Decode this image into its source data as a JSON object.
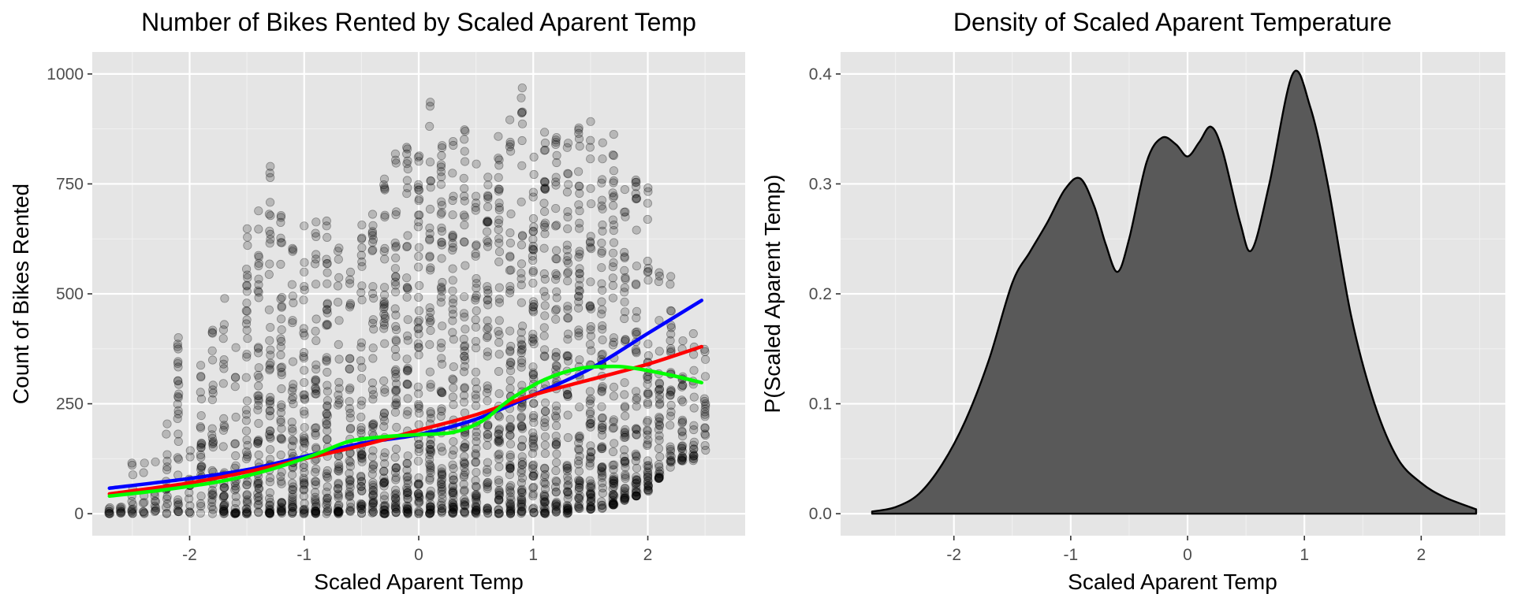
{
  "chart_data": [
    {
      "type": "scatter",
      "title": "Number of Bikes Rented by Scaled Aparent Temp",
      "xlabel": "Scaled Aparent Temp",
      "ylabel": "Count of Bikes Rented",
      "xlim": [
        -2.85,
        2.85
      ],
      "ylim": [
        -50,
        1050
      ],
      "x_ticks": [
        -2,
        -1,
        0,
        1,
        2
      ],
      "x_tick_labels": [
        "-2",
        "-1",
        "0",
        "1",
        "2"
      ],
      "y_ticks": [
        0,
        250,
        500,
        750,
        1000
      ],
      "y_tick_labels": [
        "0",
        "250",
        "500",
        "750",
        "1000"
      ],
      "grid": true,
      "background": "#e5e5e5",
      "point_color": "#000000",
      "point_alpha": 0.2,
      "scatter_columns": [
        {
          "x": -2.7,
          "ymin": 0,
          "ymax": 20
        },
        {
          "x": -2.6,
          "ymin": 0,
          "ymax": 40
        },
        {
          "x": -2.5,
          "ymin": 0,
          "ymax": 180
        },
        {
          "x": -2.4,
          "ymin": 0,
          "ymax": 120
        },
        {
          "x": -2.3,
          "ymin": 0,
          "ymax": 140
        },
        {
          "x": -2.2,
          "ymin": 0,
          "ymax": 240
        },
        {
          "x": -2.1,
          "ymin": 0,
          "ymax": 420
        },
        {
          "x": -2.0,
          "ymin": 0,
          "ymax": 200
        },
        {
          "x": -1.9,
          "ymin": 0,
          "ymax": 360
        },
        {
          "x": -1.8,
          "ymin": 0,
          "ymax": 420
        },
        {
          "x": -1.7,
          "ymin": 0,
          "ymax": 500
        },
        {
          "x": -1.6,
          "ymin": 0,
          "ymax": 390
        },
        {
          "x": -1.5,
          "ymin": 0,
          "ymax": 660
        },
        {
          "x": -1.4,
          "ymin": 0,
          "ymax": 690
        },
        {
          "x": -1.3,
          "ymin": 0,
          "ymax": 790
        },
        {
          "x": -1.2,
          "ymin": 0,
          "ymax": 690
        },
        {
          "x": -1.1,
          "ymin": 0,
          "ymax": 640
        },
        {
          "x": -1.0,
          "ymin": 0,
          "ymax": 660
        },
        {
          "x": -0.9,
          "ymin": 0,
          "ymax": 700
        },
        {
          "x": -0.8,
          "ymin": 0,
          "ymax": 710
        },
        {
          "x": -0.7,
          "ymin": 0,
          "ymax": 620
        },
        {
          "x": -0.6,
          "ymin": 0,
          "ymax": 560
        },
        {
          "x": -0.5,
          "ymin": 0,
          "ymax": 680
        },
        {
          "x": -0.4,
          "ymin": 0,
          "ymax": 720
        },
        {
          "x": -0.3,
          "ymin": 0,
          "ymax": 820
        },
        {
          "x": -0.2,
          "ymin": 0,
          "ymax": 840
        },
        {
          "x": -0.1,
          "ymin": 0,
          "ymax": 840
        },
        {
          "x": 0.0,
          "ymin": 0,
          "ymax": 840
        },
        {
          "x": 0.1,
          "ymin": 0,
          "ymax": 940
        },
        {
          "x": 0.2,
          "ymin": 0,
          "ymax": 860
        },
        {
          "x": 0.3,
          "ymin": 0,
          "ymax": 850
        },
        {
          "x": 0.4,
          "ymin": 0,
          "ymax": 890
        },
        {
          "x": 0.5,
          "ymin": 0,
          "ymax": 810
        },
        {
          "x": 0.6,
          "ymin": 0,
          "ymax": 770
        },
        {
          "x": 0.7,
          "ymin": 0,
          "ymax": 860
        },
        {
          "x": 0.8,
          "ymin": 0,
          "ymax": 900
        },
        {
          "x": 0.9,
          "ymin": 0,
          "ymax": 975
        },
        {
          "x": 1.0,
          "ymin": 0,
          "ymax": 920
        },
        {
          "x": 1.1,
          "ymin": 0,
          "ymax": 900
        },
        {
          "x": 1.2,
          "ymin": 0,
          "ymax": 870
        },
        {
          "x": 1.3,
          "ymin": 0,
          "ymax": 870
        },
        {
          "x": 1.4,
          "ymin": 10,
          "ymax": 880
        },
        {
          "x": 1.5,
          "ymin": 10,
          "ymax": 900
        },
        {
          "x": 1.6,
          "ymin": 10,
          "ymax": 860
        },
        {
          "x": 1.7,
          "ymin": 20,
          "ymax": 870
        },
        {
          "x": 1.8,
          "ymin": 30,
          "ymax": 760
        },
        {
          "x": 1.9,
          "ymin": 40,
          "ymax": 790
        },
        {
          "x": 2.0,
          "ymin": 50,
          "ymax": 770
        },
        {
          "x": 2.1,
          "ymin": 80,
          "ymax": 610
        },
        {
          "x": 2.2,
          "ymin": 100,
          "ymax": 560
        },
        {
          "x": 2.3,
          "ymin": 120,
          "ymax": 520
        },
        {
          "x": 2.4,
          "ymin": 120,
          "ymax": 420
        },
        {
          "x": 2.5,
          "ymin": 140,
          "ymax": 390
        }
      ],
      "series": [
        {
          "type": "line",
          "color": "#0000ff",
          "x": [
            -2.7,
            -2.0,
            -1.5,
            -1.0,
            -0.5,
            0.0,
            0.5,
            1.0,
            1.5,
            2.0,
            2.47
          ],
          "y": [
            58,
            80,
            100,
            130,
            160,
            180,
            215,
            270,
            330,
            410,
            485
          ]
        },
        {
          "type": "line",
          "color": "#ff0000",
          "x": [
            -2.7,
            -2.0,
            -1.5,
            -1.0,
            -0.5,
            0.0,
            0.5,
            1.0,
            1.5,
            2.0,
            2.47
          ],
          "y": [
            45,
            70,
            95,
            125,
            155,
            190,
            225,
            270,
            305,
            340,
            380
          ]
        },
        {
          "type": "line",
          "color": "#00ff00",
          "x": [
            -2.7,
            -2.2,
            -1.7,
            -1.3,
            -0.9,
            -0.6,
            -0.3,
            0.0,
            0.3,
            0.55,
            0.8,
            1.1,
            1.4,
            1.7,
            1.9,
            2.2,
            2.47
          ],
          "y": [
            40,
            55,
            75,
            100,
            135,
            165,
            175,
            180,
            185,
            210,
            260,
            305,
            330,
            335,
            330,
            315,
            298
          ]
        }
      ]
    },
    {
      "type": "area",
      "title": "Density of Scaled Aparent Temperature",
      "xlabel": "Scaled Aparent Temp",
      "ylabel": "P(Scaled Aparent Temp)",
      "xlim": [
        -2.97,
        2.72
      ],
      "ylim": [
        -0.02,
        0.42
      ],
      "x_ticks": [
        -2,
        -1,
        0,
        1,
        2
      ],
      "x_tick_labels": [
        "-2",
        "-1",
        "0",
        "1",
        "2"
      ],
      "y_ticks": [
        0.0,
        0.1,
        0.2,
        0.3,
        0.4
      ],
      "y_tick_labels": [
        "0.0",
        "0.1",
        "0.2",
        "0.3",
        "0.4"
      ],
      "grid": true,
      "background": "#e5e5e5",
      "fill_color": "#595959",
      "outline_color": "#000000",
      "x": [
        -2.7,
        -2.5,
        -2.3,
        -2.1,
        -1.9,
        -1.7,
        -1.5,
        -1.35,
        -1.2,
        -1.05,
        -0.92,
        -0.8,
        -0.7,
        -0.6,
        -0.5,
        -0.35,
        -0.22,
        -0.1,
        0.0,
        0.1,
        0.2,
        0.3,
        0.45,
        0.55,
        0.7,
        0.9,
        1.05,
        1.2,
        1.4,
        1.6,
        1.8,
        2.0,
        2.2,
        2.47
      ],
      "y": [
        0.002,
        0.006,
        0.018,
        0.045,
        0.085,
        0.14,
        0.21,
        0.238,
        0.265,
        0.295,
        0.305,
        0.28,
        0.245,
        0.22,
        0.25,
        0.32,
        0.342,
        0.336,
        0.325,
        0.338,
        0.352,
        0.33,
        0.265,
        0.24,
        0.3,
        0.4,
        0.37,
        0.3,
        0.18,
        0.1,
        0.05,
        0.028,
        0.015,
        0.004
      ]
    }
  ]
}
